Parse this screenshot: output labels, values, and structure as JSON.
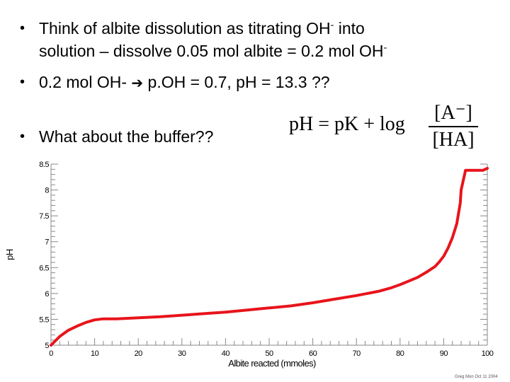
{
  "slide": {
    "bullet1_part1": "Think of albite dissolution as titrating OH",
    "bullet1_sup1": "-",
    "bullet1_part2": " into",
    "bullet1_line2": "solution – dissolve 0.05 mol albite = 0.2 mol OH",
    "bullet1_sup2": "-",
    "bullet2_part1": "0.2 mol OH- ",
    "bullet2_arrow": "➔",
    "bullet2_part2": " p.OH = 0.7, pH = 13.3  ??",
    "bullet3": "What about the buffer??",
    "bullet_symbol": "•",
    "equation_lhs": "pH = pK + log",
    "equation_num": "[A⁻]",
    "equation_den": "[HA]",
    "credit": "Greg Mon Oct 11 2004"
  },
  "chart_data": {
    "type": "line",
    "xlabel": "Albite reacted (mmoles)",
    "ylabel": "pH",
    "xlim": [
      0,
      100
    ],
    "ylim": [
      5,
      8.5
    ],
    "x_ticks": [
      0,
      10,
      20,
      30,
      40,
      50,
      60,
      70,
      80,
      90,
      100
    ],
    "y_ticks": [
      5,
      5.5,
      6,
      6.5,
      7,
      7.5,
      8,
      8.5
    ],
    "grid": false,
    "line_color": "#e8141b",
    "series": [
      {
        "x": [
          0,
          2,
          4,
          6,
          8,
          10,
          12,
          15,
          20,
          25,
          30,
          35,
          40,
          45,
          50,
          55,
          60,
          65,
          70,
          75,
          78,
          80,
          82,
          84,
          86,
          88,
          89,
          90,
          91,
          92,
          93,
          93.8,
          94,
          95,
          97,
          98,
          99,
          100
        ],
        "y": [
          5.0,
          5.17,
          5.29,
          5.37,
          5.44,
          5.49,
          5.51,
          5.51,
          5.53,
          5.55,
          5.58,
          5.61,
          5.64,
          5.68,
          5.72,
          5.76,
          5.82,
          5.89,
          5.96,
          6.04,
          6.11,
          6.17,
          6.24,
          6.31,
          6.41,
          6.52,
          6.61,
          6.72,
          6.88,
          7.08,
          7.35,
          7.75,
          8.0,
          8.38,
          8.38,
          8.38,
          8.38,
          8.42
        ]
      }
    ]
  }
}
